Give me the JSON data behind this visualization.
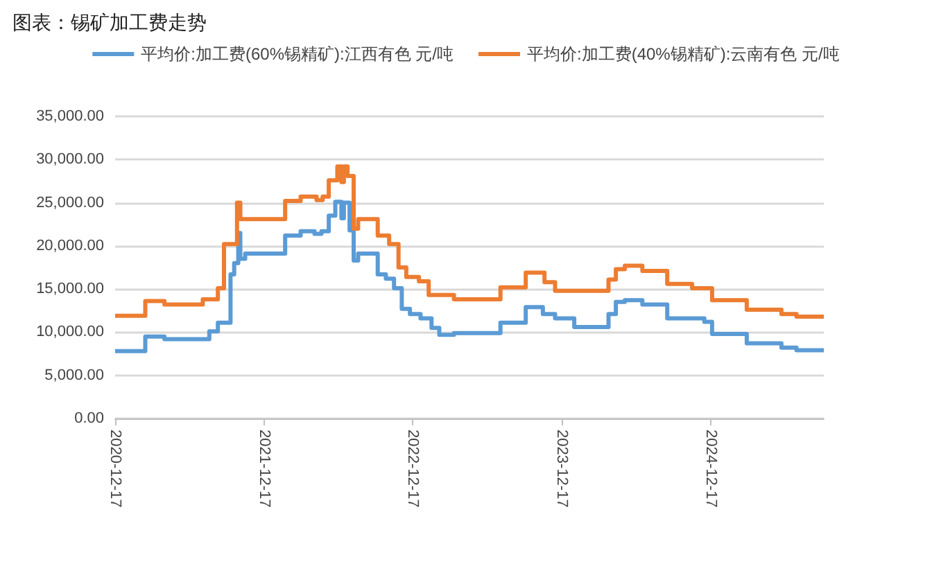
{
  "chart_data": {
    "type": "step",
    "title": "图表：锡矿加工费走势",
    "xlim": [
      "2020-12-17",
      "2025-09-20"
    ],
    "xticks": [
      "2020-12-17",
      "2021-12-17",
      "2022-12-17",
      "2023-12-17",
      "2024-12-17"
    ],
    "ylim": [
      0,
      35000
    ],
    "yticks": [
      {
        "value": 0,
        "label": "0.00"
      },
      {
        "value": 5000,
        "label": "5,000.00"
      },
      {
        "value": 10000,
        "label": "10,000.00"
      },
      {
        "value": 15000,
        "label": "15,000.00"
      },
      {
        "value": 20000,
        "label": "20,000.00"
      },
      {
        "value": 25000,
        "label": "25,000.00"
      },
      {
        "value": 30000,
        "label": "30,000.00"
      },
      {
        "value": 35000,
        "label": "35,000.00"
      }
    ],
    "grid": "y",
    "legend": "top",
    "series": [
      {
        "name": "平均价:加工费(60%锡精矿):江西有色 元/吨",
        "color": "#5b9bd5",
        "x": [
          "2020-12-17",
          "2021-03-01",
          "2021-04-17",
          "2021-08-05",
          "2021-08-26",
          "2021-09-26",
          "2021-10-05",
          "2021-10-15",
          "2021-10-20",
          "2021-11-01",
          "2022-02-07",
          "2022-03-17",
          "2022-04-20",
          "2022-05-07",
          "2022-05-25",
          "2022-06-10",
          "2022-06-25",
          "2022-07-01",
          "2022-07-15",
          "2022-07-25",
          "2022-08-05",
          "2022-09-22",
          "2022-10-12",
          "2022-11-01",
          "2022-11-20",
          "2022-12-10",
          "2023-01-05",
          "2023-02-01",
          "2023-02-20",
          "2023-03-28",
          "2023-07-20",
          "2023-09-20",
          "2023-11-01",
          "2023-12-01",
          "2024-01-17",
          "2024-04-10",
          "2024-04-28",
          "2024-05-20",
          "2024-07-02",
          "2024-09-01",
          "2024-12-01",
          "2024-12-20",
          "2025-03-15",
          "2025-06-08",
          "2025-07-15",
          "2025-09-20"
        ],
        "values": [
          7800,
          9500,
          9200,
          10100,
          11100,
          16700,
          18000,
          21500,
          18500,
          19100,
          21200,
          21700,
          21400,
          21700,
          23500,
          25100,
          23200,
          25000,
          21800,
          18300,
          19100,
          16700,
          16200,
          15100,
          12700,
          12100,
          11600,
          10500,
          9700,
          9900,
          11100,
          12900,
          12100,
          11600,
          10600,
          12100,
          13500,
          13700,
          13200,
          11600,
          11200,
          9800,
          8700,
          8200,
          7900,
          7900
        ]
      },
      {
        "name": "平均价:加工费(40%锡精矿):云南有色 元/吨",
        "color": "#ed7d31",
        "x": [
          "2020-12-17",
          "2021-03-01",
          "2021-04-17",
          "2021-07-20",
          "2021-08-26",
          "2021-09-10",
          "2021-10-12",
          "2021-10-20",
          "2022-02-07",
          "2022-03-17",
          "2022-04-25",
          "2022-05-10",
          "2022-05-25",
          "2022-06-15",
          "2022-06-25",
          "2022-07-01",
          "2022-07-10",
          "2022-07-25",
          "2022-08-05",
          "2022-09-22",
          "2022-10-20",
          "2022-11-12",
          "2022-12-01",
          "2023-01-01",
          "2023-01-25",
          "2023-03-28",
          "2023-07-20",
          "2023-09-20",
          "2023-11-05",
          "2023-12-01",
          "2024-04-10",
          "2024-04-28",
          "2024-05-20",
          "2024-07-02",
          "2024-09-01",
          "2024-11-01",
          "2024-12-20",
          "2025-03-15",
          "2025-06-08",
          "2025-07-15",
          "2025-09-20"
        ],
        "values": [
          11900,
          13600,
          13200,
          13800,
          15100,
          20200,
          25000,
          23100,
          25200,
          25700,
          25300,
          25700,
          27600,
          29200,
          27400,
          29200,
          28100,
          22000,
          23100,
          21200,
          20200,
          17500,
          16400,
          15900,
          14300,
          13800,
          15200,
          16900,
          15800,
          14800,
          16100,
          17300,
          17700,
          17100,
          15600,
          15100,
          13700,
          12600,
          12100,
          11800,
          11800
        ]
      }
    ]
  }
}
